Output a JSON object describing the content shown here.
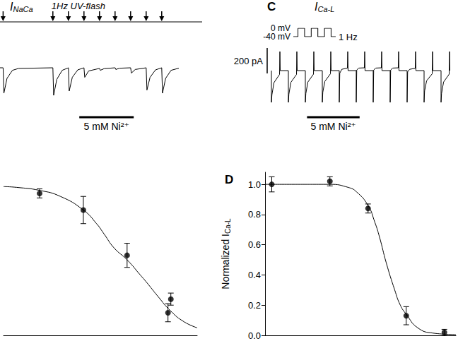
{
  "chart_data": [
    {
      "type": "line",
      "color": "#000000",
      "grid": false,
      "tick_labels": false,
      "label": {
        "text": "I",
        "subscript": "NaCa"
      },
      "flash_label": "1Hz UV-flash",
      "flashes": [
        0.2,
        3.4,
        4.4,
        5.4,
        6.4,
        7.4,
        8.4,
        9.4,
        10.4
      ],
      "bar": {
        "start": 5.1,
        "end": 8.6,
        "label": "5 mM Ni²⁺"
      },
      "xlim": [
        0,
        13
      ],
      "ylim": [
        -220,
        80
      ],
      "x": [
        0,
        0.2,
        0.25,
        0.45,
        0.8,
        1.2,
        3.4,
        3.45,
        3.65,
        4.0,
        4.4,
        4.45,
        4.65,
        5.0,
        5.4,
        5.45,
        5.7,
        6.4,
        6.45,
        6.7,
        7.4,
        7.45,
        7.7,
        8.4,
        8.45,
        8.7,
        9.4,
        9.45,
        9.65,
        10.0,
        10.4,
        10.45,
        10.65,
        11.0,
        11.5
      ],
      "values": [
        0,
        0,
        -120,
        -50,
        -12,
        -3,
        0,
        -130,
        -55,
        -12,
        0,
        -110,
        -45,
        -10,
        0,
        -45,
        -15,
        -3,
        -12,
        -4,
        0,
        -8,
        -2,
        0,
        -25,
        -8,
        0,
        -105,
        -45,
        -10,
        0,
        -120,
        -50,
        -12,
        -2
      ]
    },
    {
      "type": "line",
      "color": "#000000",
      "grid": false,
      "tick_labels": "y",
      "annotation": "1 Hz",
      "xlim": [
        0,
        3.2
      ],
      "ylim": [
        -40,
        0
      ],
      "yticks": [
        {
          "value": 0,
          "label": "0 mV"
        },
        {
          "value": -40,
          "label": "-40 mV"
        }
      ],
      "x": [
        0,
        0.35,
        0.35,
        0.85,
        0.85,
        1.35,
        1.35,
        1.85,
        1.85,
        2.35,
        2.35,
        2.85,
        2.85,
        3.2
      ],
      "values": [
        -40,
        -40,
        0,
        0,
        -40,
        -40,
        0,
        0,
        -40,
        -40,
        0,
        0,
        -40,
        -40
      ]
    },
    {
      "type": "line",
      "color": "#000000",
      "grid": false,
      "tick_labels": false,
      "panel": "C",
      "label": {
        "text": "I",
        "subscript": "Ca-L"
      },
      "scale_bar": {
        "value": 200,
        "label": "200 pA"
      },
      "bar": {
        "start": 2.1,
        "end": 5.2,
        "label": "5 mM Ni²⁺"
      },
      "xlim": [
        -0.5,
        11
      ],
      "ylim": [
        -300,
        200
      ],
      "x": [
        0,
        0,
        0.03,
        0.15,
        0.48,
        0.5,
        0.52,
        1,
        1,
        1.03,
        1.15,
        1.48,
        1.5,
        1.52,
        2,
        2,
        2.03,
        2.15,
        2.48,
        2.5,
        2.52,
        3,
        3,
        3.03,
        3.15,
        3.48,
        3.5,
        3.52,
        4,
        4,
        4.03,
        4.15,
        4.48,
        4.5,
        4.52,
        5,
        5,
        5.03,
        5.15,
        5.48,
        5.5,
        5.52,
        6,
        6,
        6.03,
        6.15,
        6.48,
        6.5,
        6.52,
        7,
        7,
        7.03,
        7.15,
        7.48,
        7.5,
        7.52,
        8,
        8,
        8.03,
        8.15,
        8.48,
        8.5,
        8.52,
        9,
        9,
        9.03,
        9.15,
        9.48,
        9.5,
        9.52,
        10,
        10,
        10.03,
        10.15,
        10.48,
        10.5,
        10.52
      ],
      "values": [
        0,
        -250,
        -190,
        -95,
        -30,
        150,
        0,
        0,
        -250,
        -185,
        -92,
        -30,
        150,
        0,
        0,
        -250,
        -180,
        -90,
        -28,
        150,
        0,
        0,
        -250,
        -170,
        -85,
        -25,
        150,
        0,
        0,
        -250,
        -20,
        10,
        20,
        150,
        0,
        0,
        -250,
        5,
        20,
        22,
        150,
        0,
        0,
        -250,
        5,
        20,
        22,
        150,
        0,
        0,
        -250,
        5,
        20,
        22,
        150,
        0,
        0,
        -250,
        -10,
        10,
        18,
        150,
        0,
        0,
        -250,
        -160,
        -80,
        -25,
        150,
        0,
        0,
        -250,
        -180,
        -90,
        -28,
        150,
        0
      ]
    },
    {
      "type": "scatter",
      "color": "#000000",
      "grid": false,
      "tick_labels": false,
      "log": "x",
      "xlim": [
        0.0015,
        40
      ],
      "ylim": [
        0,
        1.08
      ],
      "x": [
        0.01,
        0.1,
        1,
        8.6,
        10
      ],
      "values": [
        0.94,
        0.83,
        0.53,
        0.15,
        0.24
      ],
      "errors": [
        0.03,
        0.09,
        0.08,
        0.06,
        0.04
      ],
      "curve": {
        "x": [
          0.0015,
          0.003,
          0.01,
          0.03,
          0.1,
          0.2,
          0.3,
          0.5,
          1,
          2,
          3,
          5,
          10,
          20,
          40
        ],
        "values": [
          0.985,
          0.98,
          0.96,
          0.92,
          0.83,
          0.74,
          0.67,
          0.58,
          0.5,
          0.4,
          0.34,
          0.26,
          0.16,
          0.09,
          0.05
        ]
      }
    },
    {
      "type": "scatter",
      "color": "#000000",
      "grid": false,
      "tick_labels": "y",
      "log": "x",
      "panel": "D",
      "ylabel": {
        "text": "Normalized I",
        "subscript": "Ca-L"
      },
      "xlim": [
        0.0002,
        20
      ],
      "ylim": [
        0,
        1.08
      ],
      "yticks": [
        {
          "value": 0,
          "label": "0.0"
        },
        0.2,
        0.4,
        0.6,
        0.8,
        {
          "value": 1,
          "label": "1.0"
        }
      ],
      "x": [
        0.0003,
        0.01,
        0.1,
        1,
        10
      ],
      "values": [
        1.0,
        1.02,
        0.84,
        0.13,
        0.02
      ],
      "errors": [
        0.05,
        0.03,
        0.03,
        0.06,
        0.02
      ],
      "curve": {
        "x": [
          0.0002,
          0.001,
          0.01,
          0.03,
          0.05,
          0.1,
          0.15,
          0.2,
          0.3,
          0.5,
          0.7,
          1,
          2,
          5,
          20
        ],
        "values": [
          1,
          1,
          1,
          0.98,
          0.95,
          0.86,
          0.75,
          0.65,
          0.48,
          0.3,
          0.2,
          0.14,
          0.05,
          0.015,
          0.005
        ]
      }
    }
  ]
}
